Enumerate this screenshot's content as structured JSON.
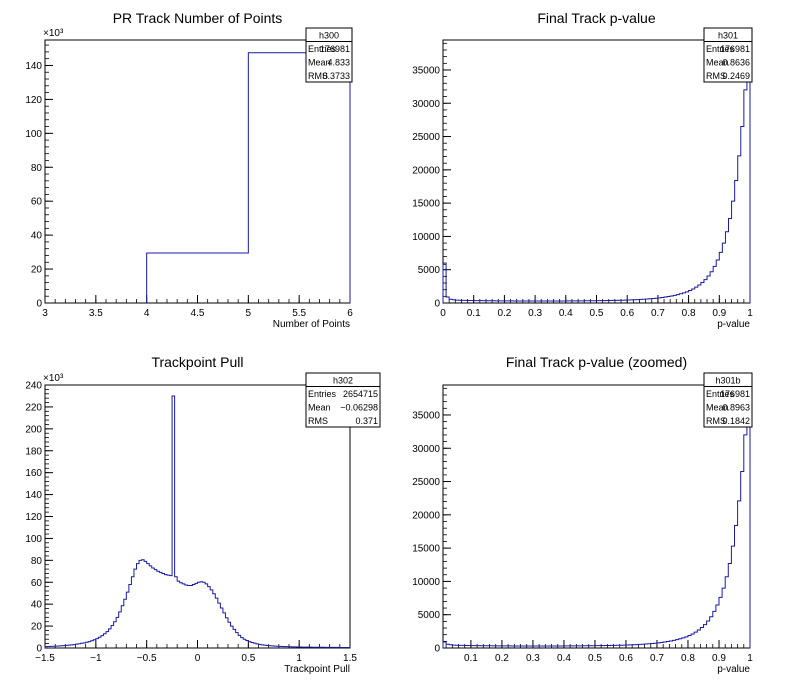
{
  "chart_data": [
    {
      "type": "histogram",
      "title": "PR Track Number of Points",
      "xlabel": "Number of Points",
      "ylabel": "",
      "y_multiplier": "×10³",
      "xlim": [
        3,
        6
      ],
      "ylim": [
        0,
        155
      ],
      "x_ticks": [
        "3",
        "3.5",
        "4",
        "4.5",
        "5",
        "5.5",
        "6"
      ],
      "y_ticks": [
        "0",
        "20",
        "40",
        "60",
        "80",
        "100",
        "120",
        "140"
      ],
      "bin_edges": [
        4,
        5,
        6
      ],
      "values": [
        29.5,
        147.5
      ],
      "stats": {
        "name": "h300",
        "entries": "176981",
        "mean": "4.833",
        "rms": "0.3733"
      }
    },
    {
      "type": "histogram",
      "title": "Final Track p-value",
      "xlabel": "p-value",
      "ylabel": "",
      "xlim": [
        0,
        1
      ],
      "ylim": [
        0,
        39500
      ],
      "x_ticks": [
        "0",
        "0.1",
        "0.2",
        "0.3",
        "0.4",
        "0.5",
        "0.6",
        "0.7",
        "0.8",
        "0.9",
        "1"
      ],
      "y_ticks": [
        "0",
        "5000",
        "10000",
        "15000",
        "20000",
        "25000",
        "30000",
        "35000"
      ],
      "bin_start": 0,
      "bin_width": 0.01,
      "values": [
        5800,
        900,
        560,
        480,
        440,
        420,
        400,
        390,
        380,
        370,
        360,
        355,
        350,
        345,
        340,
        335,
        330,
        325,
        320,
        318,
        315,
        312,
        310,
        308,
        306,
        305,
        304,
        303,
        302,
        301,
        300,
        300,
        300,
        301,
        302,
        303,
        304,
        305,
        306,
        308,
        310,
        312,
        315,
        318,
        320,
        325,
        330,
        335,
        340,
        345,
        350,
        355,
        360,
        370,
        380,
        390,
        400,
        410,
        420,
        430,
        450,
        470,
        490,
        510,
        540,
        570,
        600,
        640,
        680,
        720,
        770,
        830,
        900,
        970,
        1050,
        1150,
        1260,
        1380,
        1520,
        1680,
        1870,
        2100,
        2380,
        2700,
        3080,
        3520,
        4050,
        4700,
        5500,
        6450,
        7600,
        9000,
        10700,
        12700,
        15300,
        18400,
        22100,
        26500,
        32000,
        39500
      ],
      "stats": {
        "name": "h301",
        "entries": "176981",
        "mean": "0.8636",
        "rms": "0.2469"
      }
    },
    {
      "type": "histogram",
      "title": "Trackpoint Pull",
      "xlabel": "Trackpoint Pull",
      "ylabel": "",
      "y_multiplier": "×10³",
      "xlim": [
        -1.5,
        1.5
      ],
      "ylim": [
        0,
        240
      ],
      "x_ticks": [
        "−1.5",
        "−1",
        "−0.5",
        "0",
        "0.5",
        "1",
        "1.5"
      ],
      "y_ticks": [
        "0",
        "20",
        "40",
        "60",
        "80",
        "100",
        "120",
        "140",
        "160",
        "180",
        "200",
        "220",
        "240"
      ],
      "bin_start": -1.5,
      "bin_width": 0.025,
      "values": [
        1.3,
        1.4,
        1.5,
        1.6,
        1.7,
        1.8,
        2.0,
        2.2,
        2.4,
        2.6,
        2.8,
        3.1,
        3.5,
        3.9,
        4.3,
        4.7,
        5.2,
        5.8,
        6.6,
        7.5,
        8.5,
        9.8,
        11.3,
        13.0,
        15.0,
        17.5,
        20.5,
        24.0,
        28.0,
        33.0,
        38.5,
        44.5,
        51.0,
        58.0,
        65.0,
        72.0,
        77.0,
        80.0,
        80.5,
        79.0,
        77.0,
        75.0,
        73.0,
        71.5,
        70.0,
        69.0,
        68.0,
        67.0,
        66.5,
        66.0,
        230.0,
        65.0,
        61.0,
        59.5,
        58.5,
        57.5,
        57.0,
        57.0,
        58.0,
        59.0,
        60.0,
        60.5,
        60.0,
        58.5,
        56.0,
        53.0,
        49.5,
        45.5,
        41.0,
        36.5,
        32.0,
        27.5,
        23.5,
        20.0,
        17.0,
        14.0,
        11.5,
        9.5,
        8.0,
        6.8,
        5.8,
        5.0,
        4.4,
        3.8,
        3.3,
        2.9,
        2.6,
        2.3,
        2.1,
        1.9,
        1.7,
        1.6,
        1.5,
        1.4,
        1.3,
        1.2,
        1.1,
        1.05,
        1.0,
        0.95,
        0.9,
        0.85,
        0.8,
        0.78,
        0.75,
        0.72,
        0.7,
        0.68,
        0.66,
        0.64,
        0.62,
        0.6,
        0.58,
        0.56,
        0.54,
        0.52,
        0.5,
        0.48,
        0.46,
        0.44
      ],
      "stats": {
        "name": "h302",
        "entries": "2654715",
        "mean": "−0.06298",
        "rms": "0.371"
      }
    },
    {
      "type": "histogram",
      "title": "Final Track p-value (zoomed)",
      "xlabel": "p-value",
      "ylabel": "",
      "xlim": [
        0.01,
        1
      ],
      "ylim": [
        0,
        39500
      ],
      "x_ticks": [
        "0.1",
        "0.2",
        "0.3",
        "0.4",
        "0.5",
        "0.6",
        "0.7",
        "0.8",
        "0.9",
        "1"
      ],
      "y_ticks": [
        "0",
        "5000",
        "10000",
        "15000",
        "20000",
        "25000",
        "30000",
        "35000"
      ],
      "bin_start": 0.01,
      "bin_width": 0.01,
      "values": [
        900,
        560,
        480,
        440,
        420,
        400,
        390,
        380,
        370,
        360,
        355,
        350,
        345,
        340,
        335,
        330,
        325,
        320,
        318,
        315,
        312,
        310,
        308,
        306,
        305,
        304,
        303,
        302,
        301,
        300,
        300,
        300,
        301,
        302,
        303,
        304,
        305,
        306,
        308,
        310,
        312,
        315,
        318,
        320,
        325,
        330,
        335,
        340,
        345,
        350,
        355,
        360,
        370,
        380,
        390,
        400,
        410,
        420,
        430,
        450,
        470,
        490,
        510,
        540,
        570,
        600,
        640,
        680,
        720,
        770,
        830,
        900,
        970,
        1050,
        1150,
        1260,
        1380,
        1520,
        1680,
        1870,
        2100,
        2380,
        2700,
        3080,
        3520,
        4050,
        4700,
        5500,
        6450,
        7600,
        9000,
        10700,
        12700,
        15300,
        18400,
        22100,
        26500,
        32000,
        39500
      ],
      "stats": {
        "name": "h301b",
        "entries": "176981",
        "mean": "0.8963",
        "rms": "0.1842"
      }
    }
  ],
  "colors": {
    "line": "#1a1aa8",
    "axis": "#000000",
    "background": "#ffffff"
  },
  "stats_labels": {
    "entries": "Entries",
    "mean": "Mean",
    "rms": "RMS"
  }
}
